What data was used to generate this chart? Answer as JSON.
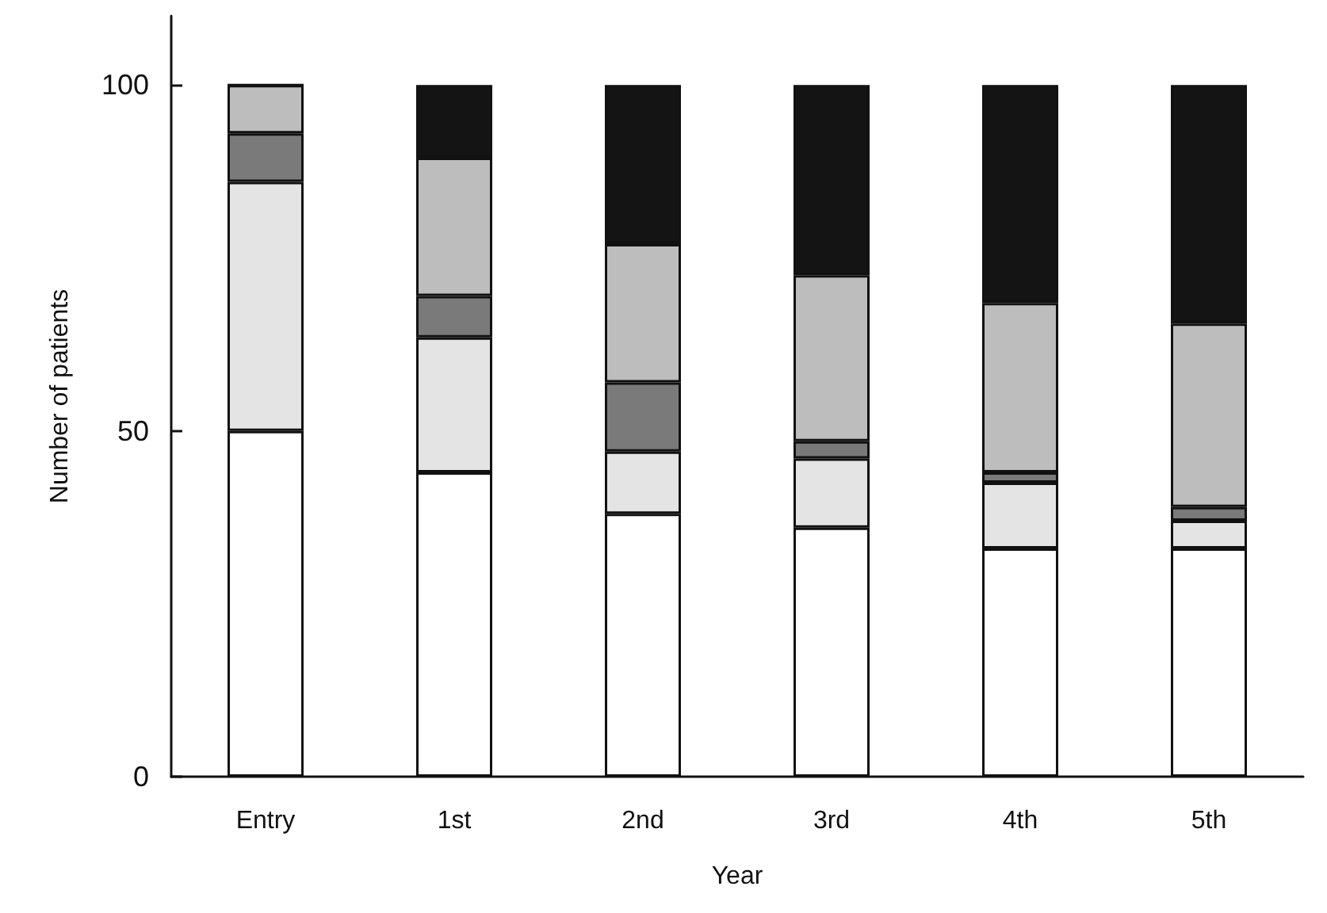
{
  "chart_data": {
    "type": "bar",
    "stacked": true,
    "xlabel": "Year",
    "ylabel": "Number of patients",
    "categories": [
      "Entry",
      "1st",
      "2nd",
      "3rd",
      "4th",
      "5th"
    ],
    "series": [
      {
        "color": "#ffffff",
        "values": [
          50,
          44,
          38,
          36,
          33,
          33
        ]
      },
      {
        "color": "#e4e4e4",
        "values": [
          36,
          19.5,
          9,
          10,
          9.5,
          4
        ]
      },
      {
        "color": "#7a7a7a",
        "values": [
          7,
          6,
          10,
          2.5,
          1.5,
          2
        ]
      },
      {
        "color": "#bdbdbd",
        "values": [
          7,
          20,
          20,
          24,
          24.5,
          26.5
        ]
      },
      {
        "color": "#141414",
        "values": [
          0,
          10.5,
          23,
          27.5,
          31.5,
          34.5
        ]
      }
    ],
    "ylim": [
      0,
      110
    ],
    "yticks": [
      0,
      50,
      100
    ],
    "grid": false
  }
}
